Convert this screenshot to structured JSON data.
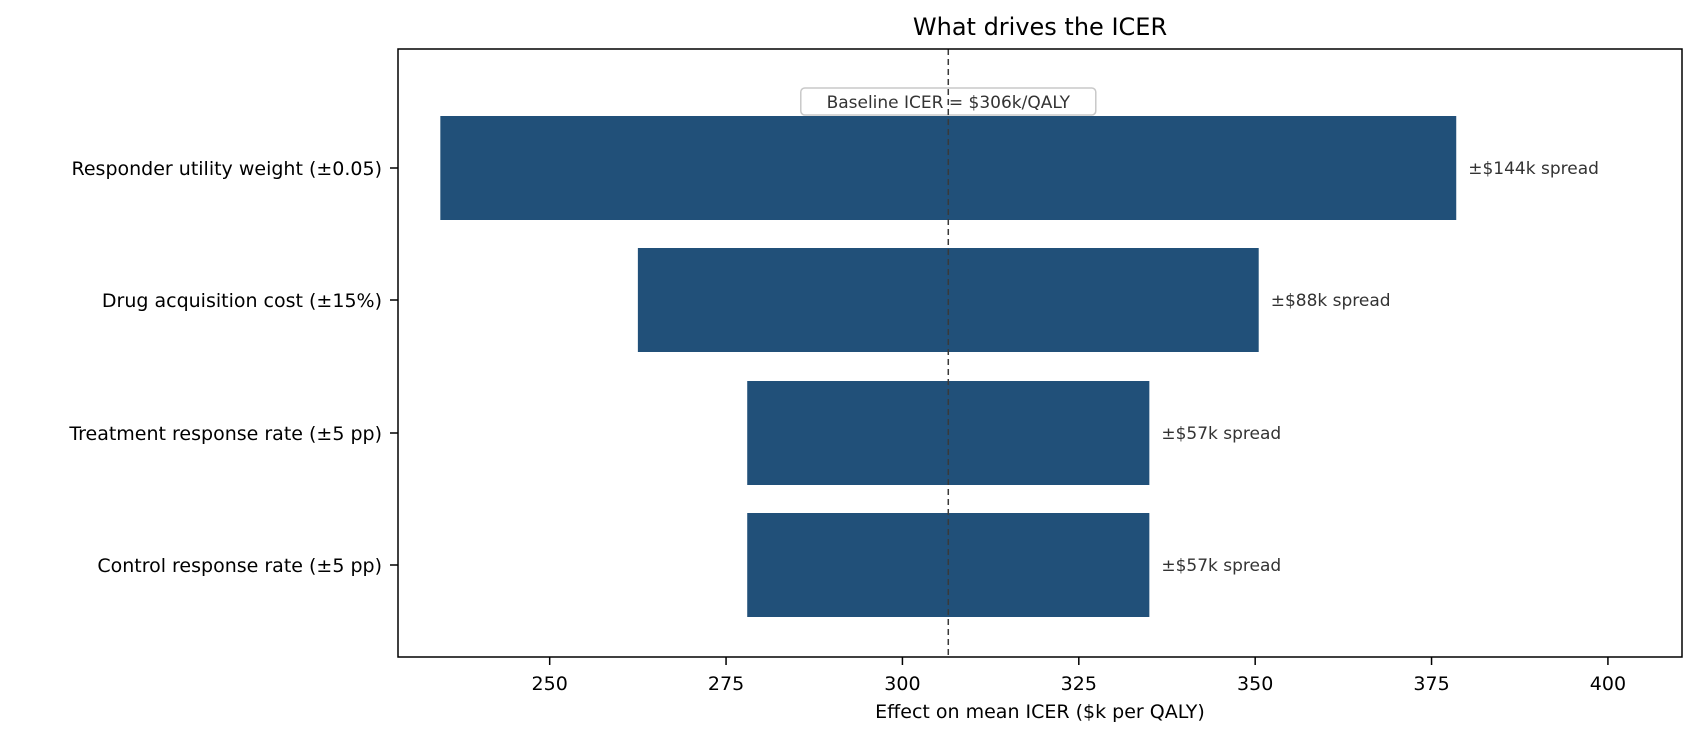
{
  "chart_data": {
    "type": "bar",
    "orientation": "horizontal",
    "title": "What drives the ICER",
    "xlabel": "Effect on mean ICER  ($k per QALY)",
    "ylabel": "",
    "xlim": [
      228.5,
      410.5
    ],
    "xticks": [
      250,
      275,
      300,
      325,
      350,
      375,
      400
    ],
    "baseline": 306.5,
    "baseline_label": "Baseline ICER = $306k/QALY",
    "bar_color": "#215079",
    "grid": false,
    "categories": [
      "Responder utility weight (±0.05)",
      "Drug acquisition cost (±15%)",
      "Treatment response rate (±5 pp)",
      "Control response rate (±5 pp)"
    ],
    "series": [
      {
        "low": 234.5,
        "high": 378.5
      },
      {
        "low": 262.5,
        "high": 350.5
      },
      {
        "low": 278.0,
        "high": 335.0
      },
      {
        "low": 278.0,
        "high": 335.0
      }
    ],
    "data_labels": [
      "±$144k spread",
      "±$88k spread",
      "±$57k spread",
      "±$57k spread"
    ]
  }
}
